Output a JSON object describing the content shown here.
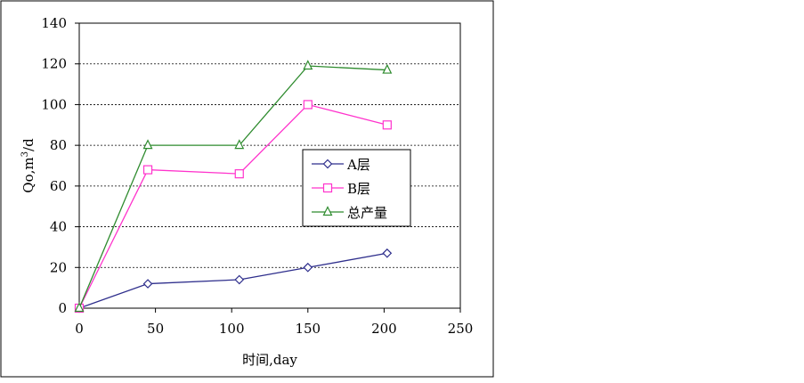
{
  "chart_data": {
    "type": "line",
    "title": "",
    "xlabel": "时间,day",
    "ylabel_main": "Qo,m",
    "ylabel_sup": "3",
    "ylabel_tail": "/d",
    "xlim": [
      0,
      250
    ],
    "ylim": [
      0,
      140
    ],
    "xticks": [
      "0",
      "50",
      "100",
      "150",
      "200",
      "250"
    ],
    "yticks": [
      "0",
      "20",
      "40",
      "60",
      "80",
      "100",
      "120",
      "140"
    ],
    "grid": "horizontal dashed",
    "legend_position": "center-right",
    "series": [
      {
        "name": "A层",
        "color": "#2E2E8C",
        "marker": "diamond",
        "x": [
          0,
          45,
          105,
          150,
          202
        ],
        "y": [
          0,
          12,
          14,
          20,
          27
        ]
      },
      {
        "name": "B层",
        "color": "#FF33CC",
        "marker": "square",
        "x": [
          0,
          45,
          105,
          150,
          202
        ],
        "y": [
          0,
          68,
          66,
          100,
          90
        ]
      },
      {
        "name": "总产量",
        "color": "#2E8B2E",
        "marker": "triangle",
        "x": [
          0,
          45,
          105,
          150,
          202
        ],
        "y": [
          0,
          80,
          80,
          119,
          117
        ]
      }
    ]
  }
}
